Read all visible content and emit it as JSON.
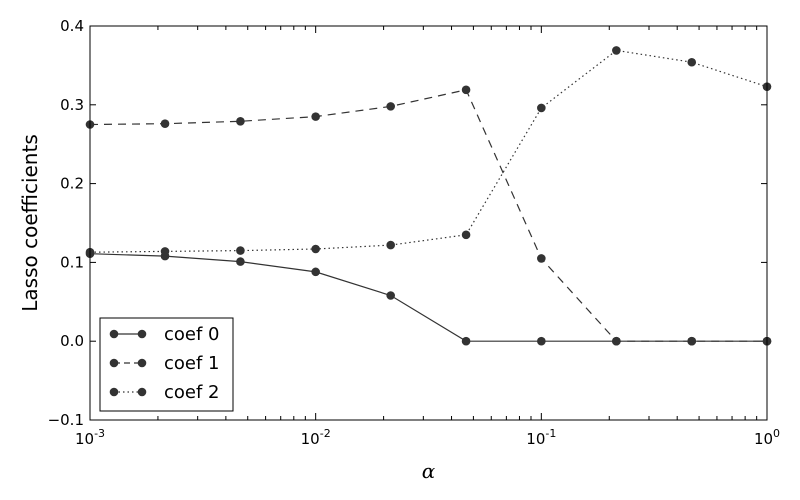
{
  "chart_data": {
    "type": "line",
    "xlabel": "α",
    "ylabel": "Lasso coefficients",
    "xscale": "log",
    "xlim": [
      0.001,
      1
    ],
    "ylim": [
      -0.1,
      0.4
    ],
    "grid": false,
    "legend_position": "lower-left",
    "x_tick_labels": [
      {
        "base": "10",
        "exp": "-3",
        "value": 0.001
      },
      {
        "base": "10",
        "exp": "-2",
        "value": 0.01
      },
      {
        "base": "10",
        "exp": "-1",
        "value": 0.1
      },
      {
        "base": "10",
        "exp": "0",
        "value": 1
      }
    ],
    "y_tick_labels": [
      {
        "label": "−0.1",
        "value": -0.1
      },
      {
        "label": "0.0",
        "value": 0.0
      },
      {
        "label": "0.1",
        "value": 0.1
      },
      {
        "label": "0.2",
        "value": 0.2
      },
      {
        "label": "0.3",
        "value": 0.3
      },
      {
        "label": "0.4",
        "value": 0.4
      }
    ],
    "x": [
      0.001,
      0.00215,
      0.00464,
      0.01,
      0.0215,
      0.0464,
      0.1,
      0.215,
      0.464,
      1.0
    ],
    "series": [
      {
        "name": "coef 0",
        "linestyle": "solid",
        "color": "#333333",
        "values": [
          0.111,
          0.108,
          0.101,
          0.088,
          0.058,
          0.0,
          0.0,
          0.0,
          0.0,
          0.0
        ]
      },
      {
        "name": "coef 1",
        "linestyle": "dashed",
        "color": "#333333",
        "values": [
          0.275,
          0.276,
          0.279,
          0.285,
          0.298,
          0.319,
          0.105,
          0.0,
          0.0,
          0.0
        ]
      },
      {
        "name": "coef 2",
        "linestyle": "dotted",
        "color": "#333333",
        "values": [
          0.113,
          0.114,
          0.115,
          0.117,
          0.122,
          0.135,
          0.296,
          0.369,
          0.354,
          0.323
        ]
      }
    ]
  }
}
